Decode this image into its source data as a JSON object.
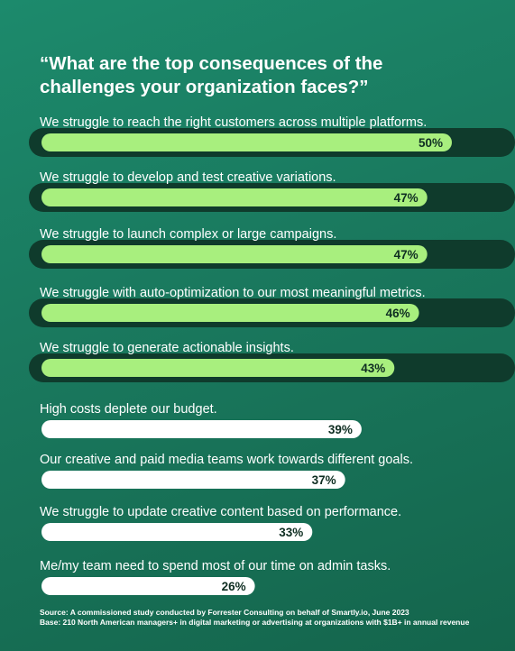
{
  "title": "“What are the top consequences of the challenges your organization faces?”",
  "footnote": {
    "source": "Source: A commissioned study conducted by Forrester Consulting on behalf of Smartly.io, June 2023",
    "base": "Base: 210 North American managers+ in digital marketing or advertising at organizations with $1B+ in annual revenue"
  },
  "colors": {
    "highlight_bar": "#a8ef7e",
    "highlight_track": "#0f3b2c",
    "normal_bar": "#ffffff",
    "value_text": "#0f2e22"
  },
  "chart_data": {
    "type": "bar",
    "orientation": "horizontal",
    "categories": [
      "We struggle to reach the right customers across multiple platforms.",
      "We struggle to develop and test creative variations.",
      "We struggle to launch complex or large campaigns.",
      "We struggle with auto-optimization to our most meaningful metrics.",
      "We struggle to generate actionable insights.",
      "High costs deplete our budget.",
      "Our creative and paid media teams work towards different goals.",
      "We struggle to update creative content based on performance.",
      "Me/my team need to spend most of our time on admin tasks."
    ],
    "values": [
      50,
      47,
      47,
      46,
      43,
      39,
      37,
      33,
      26
    ],
    "value_labels": [
      "50%",
      "47%",
      "47%",
      "46%",
      "43%",
      "39%",
      "37%",
      "33%",
      "26%"
    ],
    "highlighted": [
      true,
      true,
      true,
      true,
      true,
      false,
      false,
      false,
      false
    ],
    "unit": "%"
  }
}
